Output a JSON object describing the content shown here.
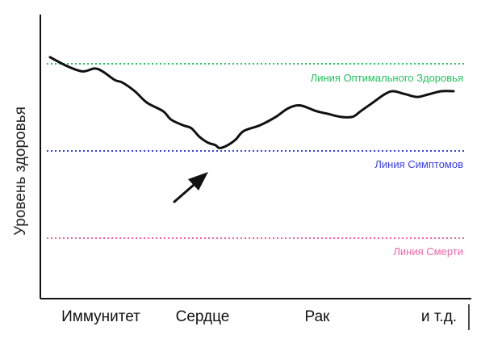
{
  "chart_data": {
    "type": "line",
    "ylabel": "Уровень здоровья",
    "xlabel": "",
    "categories": [
      "Иммунитет",
      "Сердце",
      "Рак",
      "и т.д."
    ],
    "x_range": [
      0,
      100
    ],
    "ylim": [
      0,
      100
    ],
    "grid": false,
    "legend": "none",
    "series": [
      {
        "color": "#111111",
        "points": [
          [
            0,
            85
          ],
          [
            4,
            82
          ],
          [
            8,
            80
          ],
          [
            11,
            81
          ],
          [
            13,
            80
          ],
          [
            16,
            77
          ],
          [
            18,
            76
          ],
          [
            21,
            73
          ],
          [
            24,
            69
          ],
          [
            28,
            66
          ],
          [
            30,
            63
          ],
          [
            33,
            61
          ],
          [
            35,
            60
          ],
          [
            37,
            57
          ],
          [
            39,
            55
          ],
          [
            41,
            54
          ],
          [
            42,
            53
          ],
          [
            44,
            54
          ],
          [
            46,
            56
          ],
          [
            48,
            59
          ],
          [
            52,
            61
          ],
          [
            56,
            64
          ],
          [
            59,
            67
          ],
          [
            62,
            68
          ],
          [
            66,
            66
          ],
          [
            69,
            65
          ],
          [
            72,
            64
          ],
          [
            75,
            64
          ],
          [
            77,
            66
          ],
          [
            80,
            69
          ],
          [
            83,
            72
          ],
          [
            85,
            73
          ],
          [
            88,
            72
          ],
          [
            91,
            71
          ],
          [
            94,
            72
          ],
          [
            97,
            73
          ],
          [
            100,
            73
          ]
        ]
      }
    ],
    "reference_lines": [
      {
        "label": "Линия Оптимального Здоровья",
        "y": 91,
        "color": "#22c45e"
      },
      {
        "label": "Линия Симптомов",
        "y": 58,
        "color": "#3b3fe0"
      },
      {
        "label": "Линия Смерти",
        "y": 24,
        "color": "#ee66aa"
      }
    ],
    "annotation": {
      "type": "arrow",
      "target": [
        42,
        53
      ],
      "color": "#111111"
    }
  }
}
